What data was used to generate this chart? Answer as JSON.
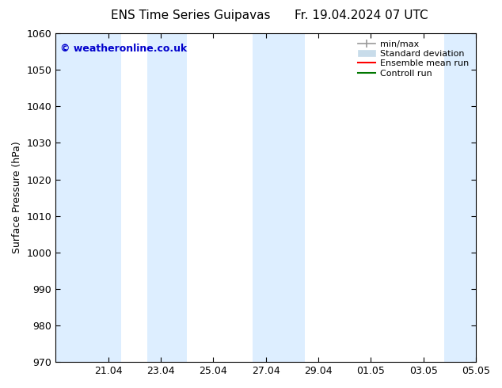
{
  "title": "ENS Time Series Guipavas",
  "title_right": "Fr. 19.04.2024 07 UTC",
  "ylabel": "Surface Pressure (hPa)",
  "watermark": "© weatheronline.co.uk",
  "watermark_color": "#0000cc",
  "ylim": [
    970,
    1060
  ],
  "yticks": [
    970,
    980,
    990,
    1000,
    1010,
    1020,
    1030,
    1040,
    1050,
    1060
  ],
  "bg_color": "#ffffff",
  "plot_bg_color": "#ffffff",
  "shaded_color_std": "#ddeeff",
  "shaded_color_minmax": "#c0c8d0",
  "total_days": 16,
  "xtick_labels": [
    "21.04",
    "23.04",
    "25.04",
    "27.04",
    "29.04",
    "01.05",
    "03.05",
    "05.05"
  ],
  "xtick_positions_days": [
    2,
    4,
    6,
    8,
    10,
    12,
    14,
    16
  ],
  "shaded_bands": [
    {
      "start_day": 0.0,
      "end_day": 2.5
    },
    {
      "start_day": 3.5,
      "end_day": 5.0
    },
    {
      "start_day": 7.5,
      "end_day": 9.5
    },
    {
      "start_day": 14.8,
      "end_day": 16.0
    }
  ],
  "legend_labels": [
    "min/max",
    "Standard deviation",
    "Ensemble mean run",
    "Controll run"
  ],
  "legend_minmax_color": "#999999",
  "legend_std_color": "#c8dcea",
  "legend_mean_color": "#ff0000",
  "legend_ctrl_color": "#007700",
  "figsize": [
    6.34,
    4.9
  ],
  "dpi": 100,
  "title_fontsize": 11,
  "tick_fontsize": 9,
  "ylabel_fontsize": 9,
  "watermark_fontsize": 9,
  "legend_fontsize": 8
}
